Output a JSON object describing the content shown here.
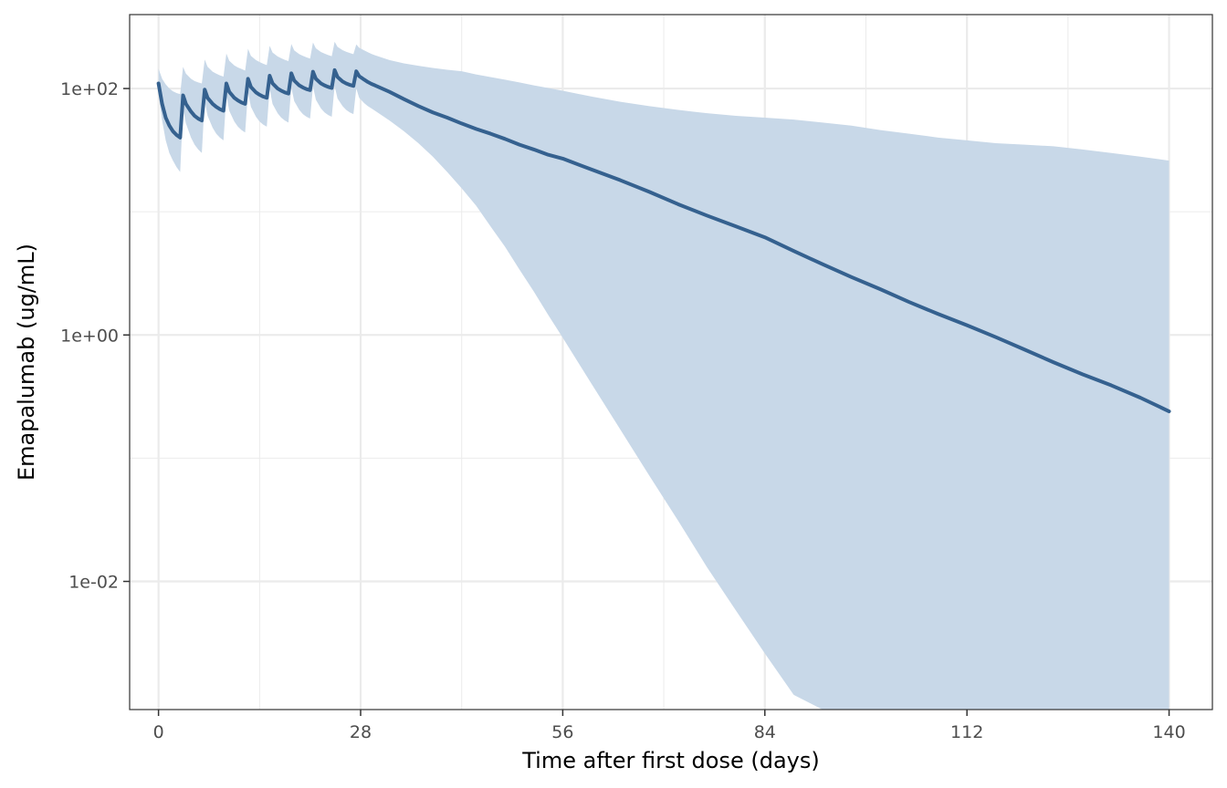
{
  "chart_data": {
    "type": "line",
    "title": "",
    "xlabel": "Time after first dose (days)",
    "ylabel": "Emapalumab (ug/mL)",
    "x_scale": "linear",
    "y_scale": "log10",
    "xlim": [
      -4,
      146
    ],
    "ylim_log10": [
      -3.04,
      2.6
    ],
    "x_ticks": [
      0,
      28,
      56,
      84,
      112,
      140
    ],
    "x_tick_labels": [
      "0",
      "28",
      "56",
      "84",
      "112",
      "140"
    ],
    "y_ticks_log10": [
      2,
      0,
      -2
    ],
    "y_tick_labels": [
      "1e+02",
      "1e+00",
      "1e-02"
    ],
    "grid": true,
    "legend": "none",
    "colors": {
      "line": "#35618f",
      "band": "#c8d8e8",
      "grid": "#ebebeb",
      "frame": "#333333"
    },
    "series": [
      {
        "kind": "median",
        "x": [
          0,
          0.5,
          1,
          1.5,
          2,
          2.5,
          3,
          3.4,
          3.8,
          4.5,
          5,
          5.5,
          6,
          6.4,
          6.8,
          7.5,
          8,
          8.5,
          9,
          9.4,
          9.8,
          10.5,
          11,
          11.5,
          12,
          12.4,
          12.8,
          13.5,
          14,
          14.5,
          15,
          15.4,
          15.8,
          16.5,
          17,
          17.5,
          18,
          18.4,
          18.8,
          19.5,
          20,
          20.5,
          21,
          21.4,
          21.8,
          22.5,
          23,
          23.5,
          24,
          24.4,
          24.8,
          25.5,
          26,
          26.5,
          27,
          27.4,
          27.8,
          28.5,
          29,
          29.5,
          30,
          32,
          34,
          36,
          38,
          40,
          42,
          44,
          46,
          48,
          50,
          52,
          54,
          56,
          60,
          64,
          68,
          72,
          76,
          80,
          84,
          88,
          92,
          96,
          100,
          104,
          108,
          112,
          116,
          120,
          124,
          128,
          132,
          136,
          140
        ],
        "y": [
          110,
          75,
          58,
          50,
          45,
          42,
          40,
          88,
          75,
          65,
          60,
          57,
          55,
          98,
          84,
          75,
          71,
          68,
          66,
          110,
          94,
          84,
          80,
          77,
          75,
          120,
          103,
          93,
          89,
          86,
          84,
          127,
          110,
          100,
          96,
          93,
          91,
          133,
          116,
          106,
          102,
          99,
          97,
          137,
          120,
          110,
          106,
          103,
          101,
          141,
          124,
          114,
          110,
          107,
          105,
          138,
          126,
          118,
          113,
          109,
          106,
          94,
          82,
          72,
          64,
          58,
          52,
          47,
          43,
          39,
          35,
          32,
          29,
          27,
          22,
          18,
          14.5,
          11.5,
          9.3,
          7.6,
          6.2,
          4.8,
          3.75,
          2.95,
          2.35,
          1.85,
          1.48,
          1.2,
          0.96,
          0.76,
          0.6,
          0.48,
          0.39,
          0.31,
          0.24
        ]
      },
      {
        "kind": "interval_upper",
        "x": [
          0,
          0.5,
          1,
          1.5,
          2,
          2.5,
          3,
          3.4,
          3.8,
          4.5,
          5,
          5.5,
          6,
          6.4,
          6.8,
          7.5,
          8,
          8.5,
          9,
          9.4,
          9.8,
          10.5,
          11,
          11.5,
          12,
          12.4,
          12.8,
          13.5,
          14,
          14.5,
          15,
          15.4,
          15.8,
          16.5,
          17,
          17.5,
          18,
          18.4,
          18.8,
          19.5,
          20,
          20.5,
          21,
          21.4,
          21.8,
          22.5,
          23,
          23.5,
          24,
          24.4,
          24.8,
          25.5,
          26,
          26.5,
          27,
          27.4,
          27.8,
          28.5,
          29,
          29.5,
          30,
          32,
          34,
          36,
          38,
          40,
          42,
          44,
          46,
          48,
          50,
          52,
          54,
          56,
          60,
          64,
          68,
          72,
          76,
          80,
          84,
          88,
          92,
          96,
          100,
          104,
          108,
          112,
          116,
          120,
          124,
          128,
          132,
          136,
          140
        ],
        "y": [
          145,
          120,
          108,
          100,
          95,
          92,
          90,
          150,
          132,
          120,
          115,
          112,
          110,
          172,
          150,
          137,
          132,
          128,
          125,
          192,
          168,
          154,
          148,
          144,
          140,
          210,
          184,
          170,
          164,
          159,
          155,
          222,
          196,
          182,
          176,
          171,
          167,
          230,
          204,
          190,
          184,
          179,
          175,
          236,
          212,
          198,
          192,
          187,
          183,
          240,
          218,
          205,
          199,
          194,
          190,
          228,
          214,
          204,
          197,
          191,
          186,
          170,
          160,
          153,
          147,
          142,
          138,
          130,
          124,
          118,
          112,
          106,
          101,
          96,
          86,
          78,
          72,
          67,
          63,
          60,
          58,
          56,
          53,
          50,
          46,
          43,
          40,
          38,
          36,
          35,
          34,
          32,
          30,
          28,
          26
        ]
      },
      {
        "kind": "interval_lower",
        "x": [
          0,
          0.5,
          1,
          1.5,
          2,
          2.5,
          3,
          3.4,
          3.8,
          4.5,
          5,
          5.5,
          6,
          6.4,
          6.8,
          7.5,
          8,
          8.5,
          9,
          9.4,
          9.8,
          10.5,
          11,
          11.5,
          12,
          12.4,
          12.8,
          13.5,
          14,
          14.5,
          15,
          15.4,
          15.8,
          16.5,
          17,
          17.5,
          18,
          18.4,
          18.8,
          19.5,
          20,
          20.5,
          21,
          21.4,
          21.8,
          22.5,
          23,
          23.5,
          24,
          24.4,
          24.8,
          25.5,
          26,
          26.5,
          27,
          27.4,
          27.8,
          28.5,
          29,
          29.5,
          30,
          32,
          34,
          36,
          38,
          40,
          42,
          44,
          46,
          48,
          50,
          52,
          54,
          56,
          60,
          64,
          68,
          72,
          76,
          80,
          84,
          88,
          92,
          96,
          100,
          104,
          108,
          112,
          116,
          120,
          124,
          128,
          132,
          136,
          140
        ],
        "y": [
          90,
          55,
          38,
          30,
          26,
          23,
          21,
          68,
          52,
          40,
          35,
          32,
          30,
          80,
          60,
          48,
          43,
          40,
          38,
          88,
          66,
          54,
          49,
          46,
          44,
          94,
          71,
          59,
          54,
          51,
          49,
          99,
          75,
          63,
          58,
          55,
          53,
          102,
          79,
          67,
          62,
          59,
          57,
          104,
          81,
          69,
          64,
          61,
          59,
          105,
          83,
          72,
          67,
          64,
          62,
          100,
          84,
          76,
          72,
          69,
          66,
          55,
          45,
          36,
          28,
          21,
          15.5,
          11.2,
          7.6,
          5.2,
          3.4,
          2.25,
          1.45,
          0.95,
          0.4,
          0.17,
          0.072,
          0.031,
          0.013,
          0.0058,
          0.0026,
          0.0012,
          0.00056,
          0.00026,
          0.00012,
          5.5e-05,
          2.55e-05,
          1.18e-05,
          5.5e-06,
          2.6e-06,
          1.2e-06,
          5.6e-07,
          2.6e-07,
          1.2e-07,
          5.5e-08
        ]
      }
    ]
  }
}
